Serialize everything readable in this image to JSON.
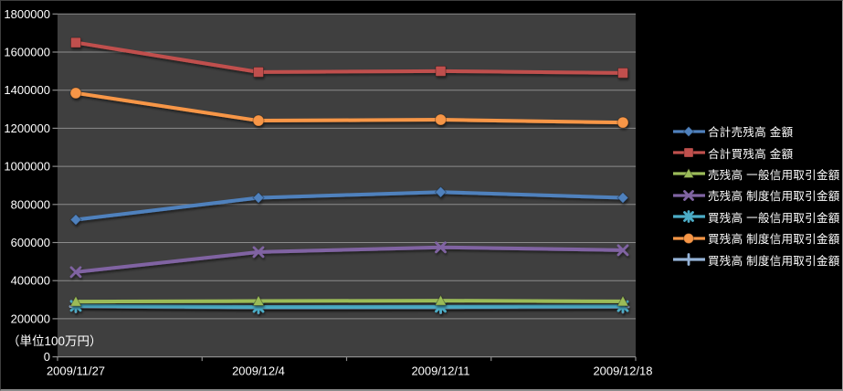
{
  "chart_data": {
    "type": "line",
    "title": "",
    "unit_note": "（単位100万円）",
    "categories": [
      "2009/11/27",
      "2009/12/4",
      "2009/12/11",
      "2009/12/18"
    ],
    "series": [
      {
        "name": "合計売残高 金額",
        "color": "#4F81BD",
        "marker": "diamond",
        "values": [
          720000,
          835000,
          865000,
          835000
        ]
      },
      {
        "name": "合計買残高 金額",
        "color": "#C0504D",
        "marker": "square",
        "values": [
          1650000,
          1495000,
          1500000,
          1490000
        ]
      },
      {
        "name": "売残高 一般信用取引金額",
        "color": "#9BBB59",
        "marker": "triangle",
        "values": [
          290000,
          293000,
          295000,
          291000
        ]
      },
      {
        "name": "売残高 制度信用取引金額",
        "color": "#8064A2",
        "marker": "x",
        "values": [
          445000,
          550000,
          575000,
          560000
        ]
      },
      {
        "name": "買残高 一般信用取引金額",
        "color": "#4BACC6",
        "marker": "star",
        "values": [
          268000,
          262000,
          263000,
          266000
        ]
      },
      {
        "name": "買残高 制度信用取引金額",
        "color": "#F79646",
        "marker": "circle",
        "values": [
          1385000,
          1240000,
          1245000,
          1230000
        ]
      },
      {
        "name": "買残高 制度信用取引金額",
        "color": "#95B3D7",
        "marker": "plus",
        "values": [
          264000,
          258000,
          259000,
          262000
        ]
      }
    ],
    "ylim": [
      0,
      1800000
    ],
    "yticks": [
      0,
      200000,
      400000,
      600000,
      800000,
      1000000,
      1200000,
      1400000,
      1600000,
      1800000
    ],
    "grid": true,
    "legend_position": "right",
    "colors": {
      "page_bg": "#000000",
      "plot_bg": "#3F3F3F",
      "grid_line": "#8C8C8C",
      "text": "#FFFFFF"
    }
  }
}
